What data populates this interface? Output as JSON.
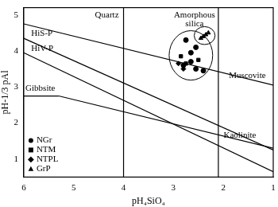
{
  "chart_data": {
    "type": "scatter",
    "x_label": "pH₄SiO₄",
    "y_label": "pH-1/3 pAl",
    "xlim": [
      6,
      1
    ],
    "ylim": [
      0.5,
      5.2
    ],
    "xticks": [
      6,
      5,
      4,
      3,
      2,
      1
    ],
    "yticks": [
      1,
      2,
      3,
      4,
      5
    ],
    "grid": false,
    "legend": "lower left",
    "series": [
      {
        "name": "NGr",
        "marker": "circle",
        "color": "#000000",
        "x": [
          2.75,
          2.55,
          2.65,
          2.8,
          2.55,
          2.4,
          2.65
        ],
        "y": [
          4.3,
          4.1,
          3.95,
          3.6,
          3.5,
          3.45,
          3.7
        ]
      },
      {
        "name": "NTM",
        "marker": "square",
        "color": "#000000",
        "x": [
          2.85,
          2.5,
          2.75
        ],
        "y": [
          3.85,
          3.75,
          3.65
        ]
      },
      {
        "name": "NTPL",
        "marker": "diamond",
        "color": "#000000",
        "x": [
          2.9,
          2.8
        ],
        "y": [
          3.65,
          3.5
        ]
      },
      {
        "name": "GrP",
        "marker": "triangle",
        "color": "#000000",
        "x": [
          2.45,
          2.4,
          2.35,
          2.3
        ],
        "y": [
          4.35,
          4.4,
          4.45,
          4.5
        ]
      }
    ],
    "lines": [
      {
        "name": "HiS-P",
        "x": [
          6,
          1
        ],
        "y": [
          4.35,
          1.25
        ]
      },
      {
        "name": "HiV-P",
        "x": [
          6,
          1
        ],
        "y": [
          3.95,
          0.65
        ]
      },
      {
        "name": "Gibbsite",
        "x": [
          6,
          5.3
        ],
        "y": [
          2.75,
          2.75
        ]
      },
      {
        "name": "Muscovite",
        "x": [
          6,
          1
        ],
        "y": [
          4.75,
          3.05
        ]
      },
      {
        "name": "Kaolinite",
        "x": [
          5.3,
          1
        ],
        "y": [
          2.75,
          1.3
        ]
      }
    ],
    "vlines": [
      {
        "name": "Quartz",
        "x": 4
      },
      {
        "name": "Amorphous silica",
        "x": 2.1
      }
    ]
  }
}
